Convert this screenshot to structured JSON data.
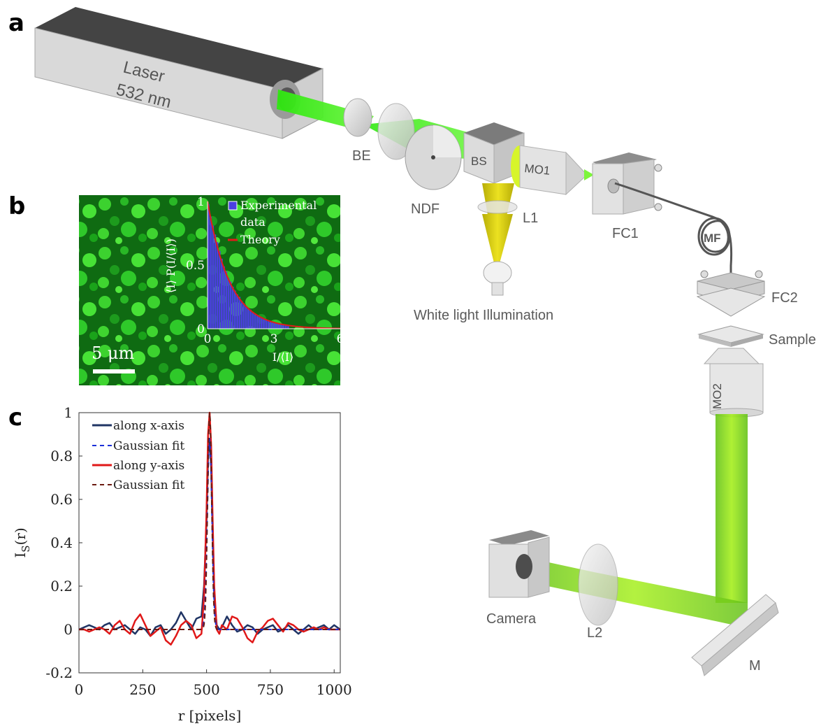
{
  "panels": {
    "a": "a",
    "b": "b",
    "c": "c"
  },
  "setup": {
    "laser_line1": "Laser",
    "laser_line2": "532 nm",
    "labels": {
      "BE": "BE",
      "NDF": "NDF",
      "BS": "BS",
      "MO1": "MO1",
      "L1": "L1",
      "white_light": "White light Illumination",
      "FC1": "FC1",
      "MF": "MF",
      "FC2": "FC2",
      "sample": "Sample",
      "MO2": "MO2",
      "camera": "Camera",
      "L2": "L2",
      "M": "M"
    },
    "colors": {
      "beam": "#4cf22a",
      "beam_yellow": "#cfc40a",
      "device": "#d8d8d8"
    }
  },
  "speckle": {
    "scalebar_label": "5 μm",
    "colors": {
      "speckle": "#33d52e",
      "histogram": "#4b3fe0",
      "theory": "#e21b1b"
    }
  },
  "chart_data": [
    {
      "type": "bar",
      "panel": "b",
      "xlabel": "I/⟨I⟩",
      "ylabel": "⟨I⟩ P(I/⟨I⟩)",
      "xlim": [
        0,
        6
      ],
      "ylim": [
        0,
        1
      ],
      "xticks": [
        "0",
        "3",
        "6"
      ],
      "yticks": [
        "0",
        "0.5",
        "1"
      ],
      "legend": [
        "Experimental data",
        "Theory"
      ],
      "legend_lines": [
        "Experimental",
        "data",
        "Theory"
      ],
      "series": [
        {
          "name": "Experimental data",
          "x_step": 0.1,
          "values": [
            0.98,
            0.88,
            0.81,
            0.74,
            0.68,
            0.61,
            0.55,
            0.49,
            0.45,
            0.4,
            0.37,
            0.33,
            0.3,
            0.27,
            0.25,
            0.22,
            0.2,
            0.18,
            0.16,
            0.15,
            0.13,
            0.12,
            0.11,
            0.1,
            0.09,
            0.08,
            0.07,
            0.065,
            0.06,
            0.05,
            0.045,
            0.04,
            0.035,
            0.03,
            0.028,
            0.025,
            0.02
          ]
        },
        {
          "name": "Theory",
          "function": "exp(-x)"
        }
      ]
    },
    {
      "type": "line",
      "panel": "c",
      "xlabel": "r [pixels]",
      "ylabel": "I",
      "ylabel_sub": "S",
      "ylabel_tail": "(r)",
      "xlim": [
        0,
        1024
      ],
      "ylim": [
        -0.2,
        1
      ],
      "xticks": [
        "0",
        "250",
        "500",
        "750",
        "1000"
      ],
      "yticks": [
        "1",
        "0.8",
        "0.6",
        "0.4",
        "0.2",
        "0",
        "-0.2"
      ],
      "legend": [
        "along x-axis",
        "Gaussian fit",
        "along y-axis",
        "Gaussian fit"
      ],
      "series": [
        {
          "name": "along x-axis",
          "color": "#1f3464",
          "x": [
            0,
            20,
            40,
            60,
            80,
            100,
            120,
            140,
            160,
            180,
            200,
            220,
            240,
            260,
            280,
            300,
            320,
            340,
            360,
            380,
            400,
            420,
            440,
            460,
            480,
            490,
            500,
            506,
            512,
            518,
            524,
            530,
            540,
            550,
            560,
            580,
            600,
            620,
            640,
            660,
            680,
            700,
            720,
            740,
            760,
            780,
            800,
            820,
            840,
            860,
            880,
            900,
            920,
            940,
            960,
            980,
            1000,
            1024
          ],
          "y": [
            0.0,
            0.01,
            0.02,
            0.01,
            0.0,
            0.02,
            0.03,
            0.0,
            0.01,
            0.02,
            0.0,
            -0.02,
            0.01,
            0.0,
            -0.03,
            0.01,
            0.02,
            -0.02,
            0.0,
            0.03,
            0.08,
            0.04,
            0.0,
            0.05,
            0.06,
            0.2,
            0.5,
            0.8,
            0.88,
            0.75,
            0.45,
            0.15,
            0.02,
            0.0,
            0.01,
            0.06,
            0.02,
            -0.01,
            0.0,
            0.02,
            0.01,
            -0.02,
            0.0,
            0.01,
            0.02,
            -0.01,
            0.0,
            0.02,
            0.0,
            -0.02,
            0.0,
            0.02,
            0.0,
            0.01,
            0.02,
            0.0,
            0.02,
            0.0
          ]
        },
        {
          "name": "Gaussian fit",
          "color": "#1a2fd8",
          "dash": true,
          "gaussian": {
            "center": 512,
            "sigma": 9,
            "amp": 0.88
          }
        },
        {
          "name": "along y-axis",
          "color": "#e01818",
          "x": [
            0,
            20,
            40,
            60,
            80,
            100,
            120,
            140,
            160,
            180,
            200,
            220,
            240,
            260,
            280,
            300,
            320,
            340,
            360,
            380,
            400,
            420,
            440,
            460,
            480,
            490,
            500,
            506,
            512,
            518,
            524,
            530,
            540,
            550,
            560,
            580,
            600,
            620,
            640,
            660,
            680,
            700,
            720,
            740,
            760,
            780,
            800,
            820,
            840,
            860,
            880,
            900,
            920,
            940,
            960,
            980,
            1000,
            1024
          ],
          "y": [
            0.0,
            0.0,
            -0.01,
            0.0,
            0.01,
            0.0,
            -0.02,
            0.02,
            0.04,
            0.0,
            -0.02,
            0.04,
            0.07,
            0.02,
            -0.03,
            -0.01,
            0.01,
            -0.05,
            -0.07,
            -0.03,
            0.02,
            0.04,
            0.02,
            -0.04,
            -0.02,
            0.15,
            0.55,
            0.9,
            1.0,
            0.85,
            0.5,
            0.2,
            0.0,
            -0.02,
            0.02,
            0.0,
            0.06,
            0.05,
            0.01,
            -0.04,
            -0.06,
            -0.01,
            0.01,
            0.04,
            0.05,
            0.02,
            -0.01,
            0.03,
            0.02,
            0.0,
            -0.01,
            0.0,
            0.01,
            0.0,
            0.01,
            0.0,
            0.0,
            0.0
          ]
        },
        {
          "name": "Gaussian fit",
          "color": "#6b1a10",
          "dash": true,
          "gaussian": {
            "center": 512,
            "sigma": 8,
            "amp": 1.0
          }
        }
      ]
    }
  ]
}
